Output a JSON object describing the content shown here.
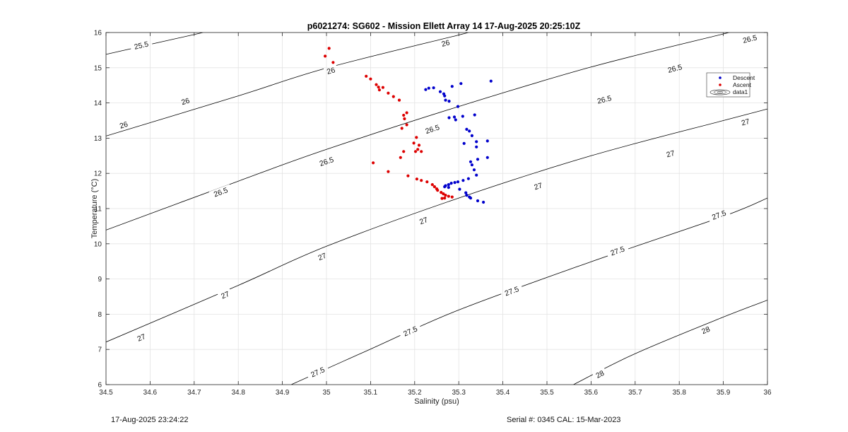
{
  "footer": {
    "left": "17-Aug-2025 23:24:22",
    "right": "Serial #: 0345  CAL: 15-Mar-2023"
  },
  "chart_data": {
    "type": "scatter",
    "title": "p6021274: SG602 - Mission Ellett Array 14 17-Aug-2025 20:25:10Z",
    "xlabel": "Salinity (psu)",
    "ylabel": "Temperature (°C)",
    "xlim": [
      34.5,
      36
    ],
    "ylim": [
      6,
      16
    ],
    "xticks": [
      "34.5",
      "34.6",
      "34.7",
      "34.8",
      "34.9",
      "35",
      "35.1",
      "35.2",
      "35.3",
      "35.4",
      "35.5",
      "35.6",
      "35.7",
      "35.8",
      "35.9",
      "36"
    ],
    "yticks": [
      "6",
      "7",
      "8",
      "9",
      "10",
      "11",
      "12",
      "13",
      "14",
      "15",
      "16"
    ],
    "grid": true,
    "legend": {
      "placement": "top-right",
      "entries": [
        "Descent",
        "Ascent",
        "data1"
      ]
    },
    "colors": {
      "descent": "#0000cc",
      "ascent": "#dd0000",
      "contour": "#000000",
      "grid": "#e3e3e3"
    },
    "series": [
      {
        "name": "Descent",
        "points": [
          [
            35.373,
            14.62
          ],
          [
            35.305,
            14.55
          ],
          [
            35.285,
            14.47
          ],
          [
            35.225,
            14.38
          ],
          [
            35.232,
            14.42
          ],
          [
            35.243,
            14.43
          ],
          [
            35.258,
            14.32
          ],
          [
            35.266,
            14.26
          ],
          [
            35.268,
            14.2
          ],
          [
            35.278,
            14.05
          ],
          [
            35.27,
            14.08
          ],
          [
            35.298,
            13.9
          ],
          [
            35.336,
            13.66
          ],
          [
            35.309,
            13.62
          ],
          [
            35.29,
            13.6
          ],
          [
            35.278,
            13.58
          ],
          [
            35.293,
            13.52
          ],
          [
            35.318,
            13.25
          ],
          [
            35.324,
            13.2
          ],
          [
            35.33,
            13.07
          ],
          [
            35.34,
            12.9
          ],
          [
            35.365,
            12.92
          ],
          [
            35.312,
            12.85
          ],
          [
            35.34,
            12.75
          ],
          [
            35.365,
            12.45
          ],
          [
            35.343,
            12.4
          ],
          [
            35.327,
            12.33
          ],
          [
            35.33,
            12.24
          ],
          [
            35.335,
            12.1
          ],
          [
            35.34,
            11.95
          ],
          [
            35.322,
            11.85
          ],
          [
            35.31,
            11.8
          ],
          [
            35.298,
            11.76
          ],
          [
            35.291,
            11.74
          ],
          [
            35.283,
            11.72
          ],
          [
            35.277,
            11.68
          ],
          [
            35.27,
            11.65
          ],
          [
            35.268,
            11.62
          ],
          [
            35.277,
            11.6
          ],
          [
            35.302,
            11.55
          ],
          [
            35.316,
            11.45
          ],
          [
            35.318,
            11.38
          ],
          [
            35.324,
            11.33
          ],
          [
            35.327,
            11.3
          ],
          [
            35.343,
            11.22
          ],
          [
            35.356,
            11.18
          ]
        ]
      },
      {
        "name": "Ascent",
        "points": [
          [
            35.006,
            15.55
          ],
          [
            34.997,
            15.33
          ],
          [
            35.015,
            15.15
          ],
          [
            35.09,
            14.76
          ],
          [
            35.1,
            14.68
          ],
          [
            35.113,
            14.52
          ],
          [
            35.118,
            14.45
          ],
          [
            35.128,
            14.44
          ],
          [
            35.12,
            14.37
          ],
          [
            35.14,
            14.28
          ],
          [
            35.152,
            14.18
          ],
          [
            35.165,
            14.08
          ],
          [
            35.182,
            13.72
          ],
          [
            35.175,
            13.65
          ],
          [
            35.177,
            13.55
          ],
          [
            35.182,
            13.38
          ],
          [
            35.171,
            13.28
          ],
          [
            35.204,
            13.02
          ],
          [
            35.198,
            12.86
          ],
          [
            35.21,
            12.8
          ],
          [
            35.207,
            12.68
          ],
          [
            35.215,
            12.62
          ],
          [
            35.202,
            12.62
          ],
          [
            35.175,
            12.62
          ],
          [
            35.168,
            12.45
          ],
          [
            35.106,
            12.3
          ],
          [
            35.14,
            12.05
          ],
          [
            35.185,
            11.93
          ],
          [
            35.205,
            11.84
          ],
          [
            35.215,
            11.8
          ],
          [
            35.228,
            11.76
          ],
          [
            35.24,
            11.68
          ],
          [
            35.245,
            11.62
          ],
          [
            35.25,
            11.56
          ],
          [
            35.252,
            11.52
          ],
          [
            35.26,
            11.46
          ],
          [
            35.265,
            11.42
          ],
          [
            35.27,
            11.38
          ],
          [
            35.277,
            11.35
          ],
          [
            35.285,
            11.33
          ],
          [
            35.268,
            11.3
          ],
          [
            35.262,
            11.29
          ]
        ]
      }
    ],
    "isopycnal_labels": [
      "25.5",
      "26",
      "26.5",
      "27",
      "27.5",
      "28"
    ],
    "isopycnals": [
      {
        "sigma": "25.5",
        "points": [
          [
            34.5,
            15.38
          ],
          [
            34.72,
            16.0
          ]
        ]
      },
      {
        "sigma": "26",
        "points": [
          [
            34.5,
            13.06
          ],
          [
            34.8,
            14.2
          ],
          [
            35.0,
            14.99
          ],
          [
            35.3,
            15.93
          ],
          [
            35.32,
            16.0
          ]
        ]
      },
      {
        "sigma": "26.5",
        "points": [
          [
            34.5,
            10.39
          ],
          [
            34.8,
            11.78
          ],
          [
            35.0,
            12.68
          ],
          [
            35.3,
            13.9
          ],
          [
            35.6,
            15.02
          ],
          [
            35.9,
            15.96
          ],
          [
            36.0,
            16.26
          ]
        ]
      },
      {
        "sigma": "27",
        "points": [
          [
            34.5,
            7.21
          ],
          [
            34.8,
            8.82
          ],
          [
            35.0,
            9.93
          ],
          [
            35.3,
            11.3
          ],
          [
            35.6,
            12.5
          ],
          [
            35.9,
            13.5
          ],
          [
            36.0,
            13.83
          ]
        ]
      },
      {
        "sigma": "27.5",
        "points": [
          [
            34.92,
            6.0
          ],
          [
            35.1,
            7.01
          ],
          [
            35.3,
            8.12
          ],
          [
            35.6,
            9.49
          ],
          [
            35.9,
            10.78
          ],
          [
            36.0,
            11.3
          ]
        ]
      },
      {
        "sigma": "28",
        "points": [
          [
            35.56,
            6.0
          ],
          [
            35.7,
            6.88
          ],
          [
            35.9,
            7.92
          ],
          [
            36.0,
            8.4
          ]
        ]
      }
    ],
    "isopycnal_label_positions": [
      {
        "sigma": "25.5",
        "x": 34.58,
        "y": 15.64
      },
      {
        "sigma": "26",
        "x": 35.01,
        "y": 14.92
      },
      {
        "sigma": "26",
        "x": 35.27,
        "y": 15.7
      },
      {
        "sigma": "26",
        "x": 34.68,
        "y": 14.05
      },
      {
        "sigma": "26",
        "x": 34.54,
        "y": 13.38
      },
      {
        "sigma": "26.5",
        "x": 34.76,
        "y": 11.47
      },
      {
        "sigma": "26.5",
        "x": 35.0,
        "y": 12.34
      },
      {
        "sigma": "26.5",
        "x": 35.24,
        "y": 13.26
      },
      {
        "sigma": "26.5",
        "x": 35.63,
        "y": 14.1
      },
      {
        "sigma": "26.5",
        "x": 35.79,
        "y": 14.98
      },
      {
        "sigma": "26.5",
        "x": 35.96,
        "y": 15.82
      },
      {
        "sigma": "27",
        "x": 34.58,
        "y": 7.34
      },
      {
        "sigma": "27",
        "x": 34.77,
        "y": 8.55
      },
      {
        "sigma": "27",
        "x": 34.99,
        "y": 9.64
      },
      {
        "sigma": "27",
        "x": 35.22,
        "y": 10.66
      },
      {
        "sigma": "27",
        "x": 35.48,
        "y": 11.64
      },
      {
        "sigma": "27",
        "x": 35.78,
        "y": 12.56
      },
      {
        "sigma": "27",
        "x": 35.95,
        "y": 13.46
      },
      {
        "sigma": "27.5",
        "x": 34.98,
        "y": 6.36
      },
      {
        "sigma": "27.5",
        "x": 35.19,
        "y": 7.52
      },
      {
        "sigma": "27.5",
        "x": 35.42,
        "y": 8.66
      },
      {
        "sigma": "27.5",
        "x": 35.66,
        "y": 9.8
      },
      {
        "sigma": "27.5",
        "x": 35.89,
        "y": 10.82
      },
      {
        "sigma": "28",
        "x": 35.62,
        "y": 6.3
      },
      {
        "sigma": "28",
        "x": 35.86,
        "y": 7.55
      }
    ]
  }
}
